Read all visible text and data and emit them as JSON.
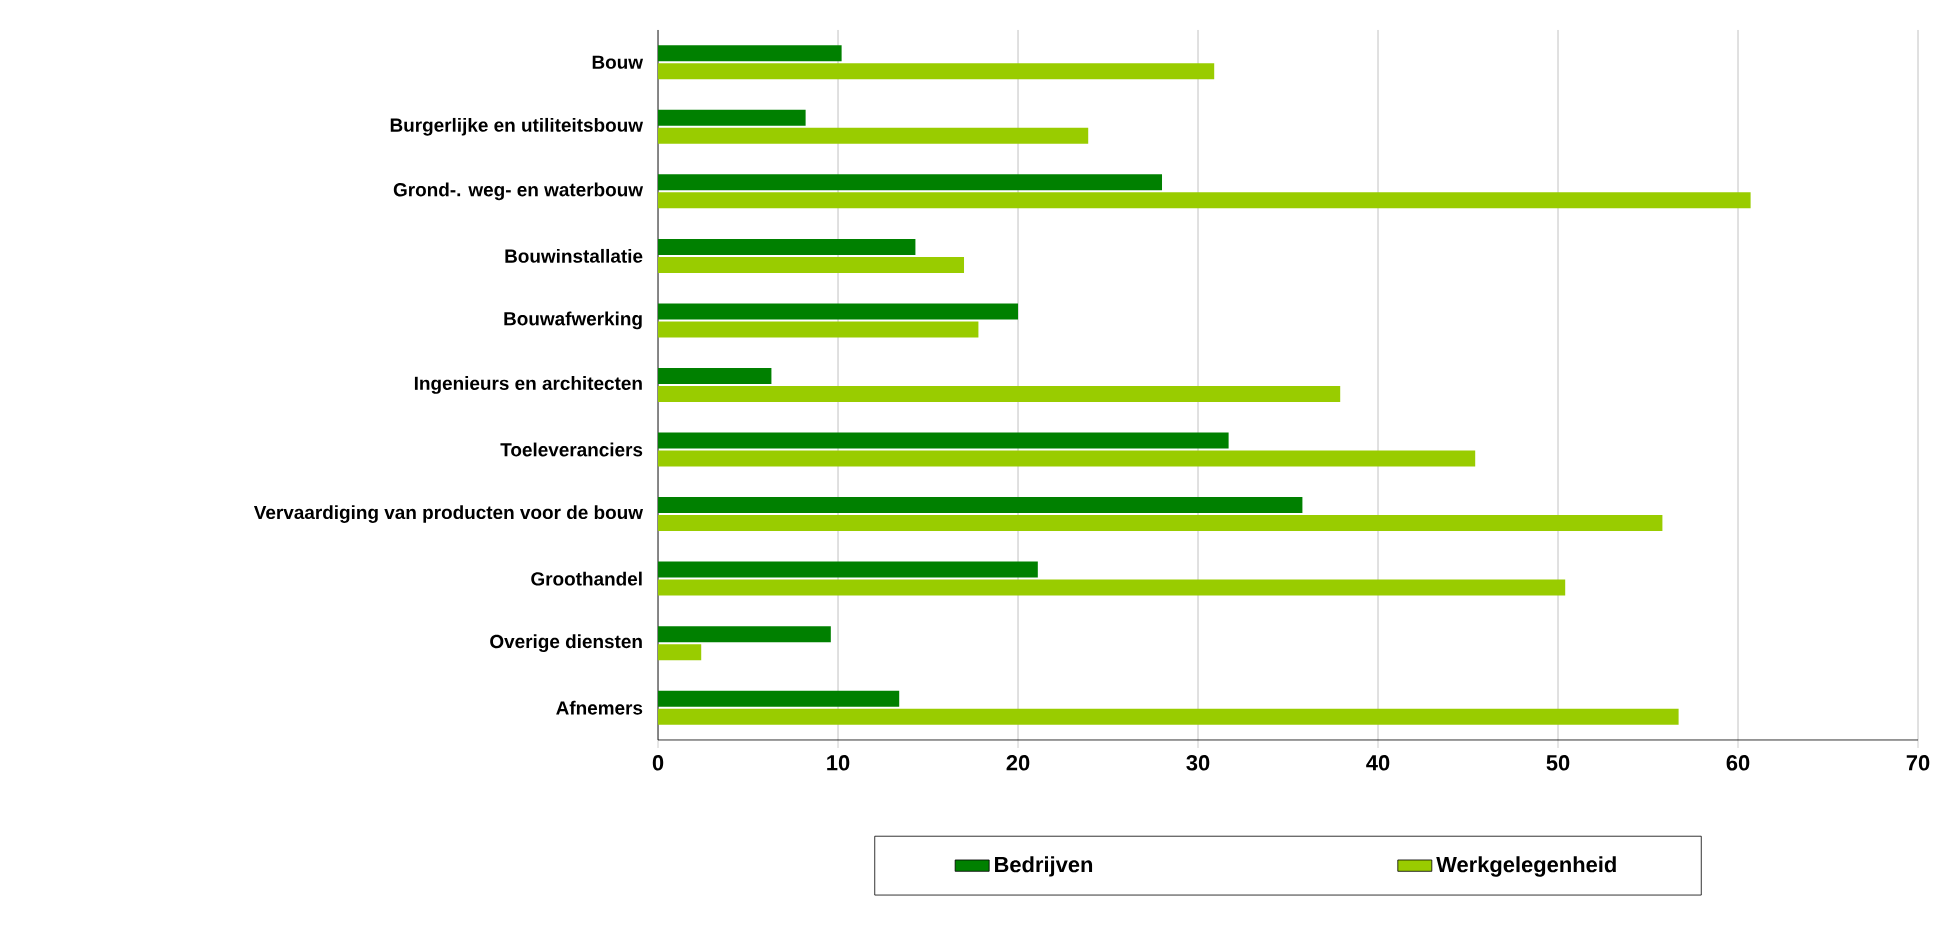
{
  "chart_data": {
    "type": "bar",
    "orientation": "horizontal",
    "categories": [
      "Bouw",
      "Burgerlijke en utiliteitsbouw",
      "Grond-. weg- en waterbouw",
      "Bouwinstallatie",
      "Bouwafwerking",
      "Ingenieurs en architecten",
      "Toeleveranciers",
      "Vervaardiging van producten voor de bouw",
      "Groothandel",
      "Overige diensten",
      "Afnemers"
    ],
    "series": [
      {
        "name": "Bedrijven",
        "color": "#008000",
        "values": [
          10.2,
          8.2,
          28.0,
          14.3,
          20.0,
          6.3,
          31.7,
          35.8,
          21.1,
          9.6,
          13.4
        ]
      },
      {
        "name": "Werkgelegenheid",
        "color": "#99cc00",
        "values": [
          30.9,
          23.9,
          60.7,
          17.0,
          17.8,
          37.9,
          45.4,
          55.8,
          50.4,
          2.4,
          56.7
        ]
      }
    ],
    "xlim": [
      0,
      70
    ],
    "xticks": [
      0,
      10,
      20,
      30,
      40,
      50,
      60,
      70
    ],
    "grid": "x",
    "legend": "bottom"
  }
}
